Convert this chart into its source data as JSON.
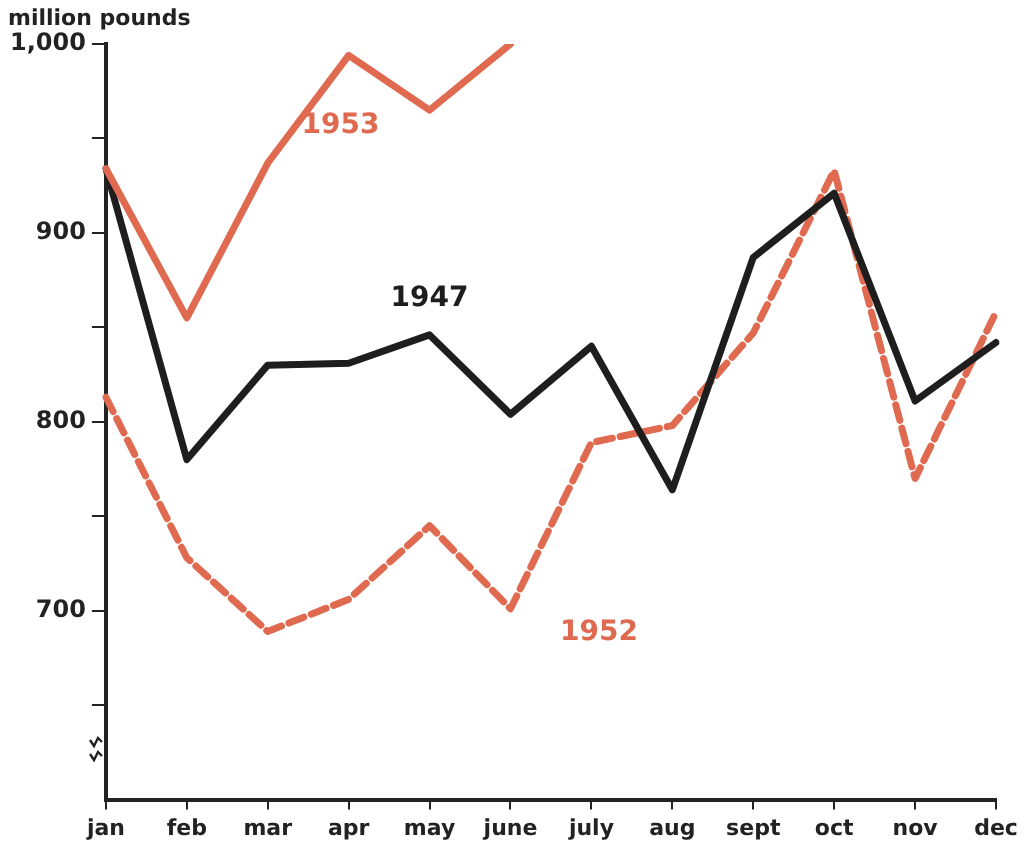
{
  "chart_data": {
    "type": "line",
    "ylabel": "million pounds",
    "categories": [
      "jan",
      "feb",
      "mar",
      "apr",
      "may",
      "june",
      "july",
      "aug",
      "sept",
      "oct",
      "nov",
      "dec"
    ],
    "series": [
      {
        "name": "1953",
        "color": "#e06a50",
        "line_style": "solid",
        "values": [
          934,
          855,
          937,
          994,
          965,
          1000,
          null,
          null,
          null,
          null,
          null,
          null
        ]
      },
      {
        "name": "1947",
        "color": "#1e1e1e",
        "line_style": "solid",
        "values": [
          934,
          780,
          830,
          831,
          846,
          804,
          840,
          764,
          887,
          921,
          811,
          842
        ]
      },
      {
        "name": "1952",
        "color": "#e06a50",
        "line_style": "dashed",
        "values": [
          813,
          728,
          689,
          706,
          745,
          701,
          789,
          798,
          847,
          933,
          770,
          858
        ]
      }
    ],
    "ylim": [
      600,
      1000
    ],
    "yticks": [
      {
        "value": 650,
        "label": null
      },
      700,
      {
        "value": 750,
        "label": null
      },
      800,
      {
        "value": 850,
        "label": null
      },
      900,
      {
        "value": 950,
        "label": null
      },
      {
        "value": 1000,
        "label": "1,000"
      }
    ],
    "grid": false,
    "legend": false,
    "marker": "none"
  }
}
